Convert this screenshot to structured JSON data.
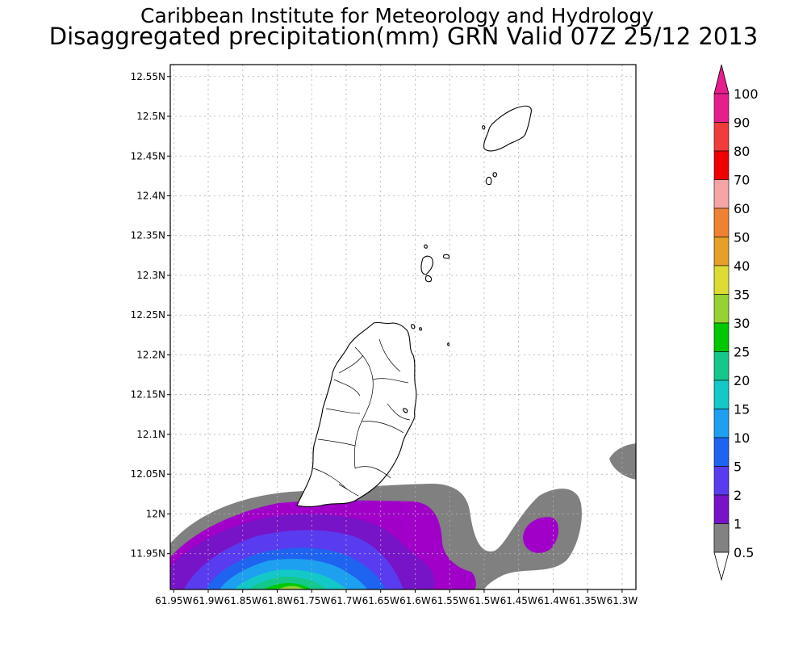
{
  "header": {
    "line1": "Caribbean Institute for Meteorology and Hydrology",
    "line2": "Disaggregated precipitation(mm) GRN Valid 07Z 25/12 2013"
  },
  "map": {
    "lat_ticks": [
      "12.55N",
      "12.5N",
      "12.45N",
      "12.4N",
      "12.35N",
      "12.3N",
      "12.25N",
      "12.2N",
      "12.15N",
      "12.1N",
      "12.05N",
      "12N",
      "11.95N"
    ],
    "lon_ticks": [
      "61.95W",
      "61.9W",
      "61.85W",
      "61.8W",
      "61.75W",
      "61.7W",
      "61.65W",
      "61.6W",
      "61.55W",
      "61.5W",
      "61.45W",
      "61.4W",
      "61.35W",
      "61.3W"
    ],
    "lat_values": [
      12.55,
      12.5,
      12.45,
      12.4,
      12.35,
      12.3,
      12.25,
      12.2,
      12.15,
      12.1,
      12.05,
      12.0,
      11.95
    ],
    "lon_values": [
      -61.95,
      -61.9,
      -61.85,
      -61.8,
      -61.75,
      -61.7,
      -61.65,
      -61.6,
      -61.55,
      -61.5,
      -61.45,
      -61.4,
      -61.35,
      -61.3
    ],
    "lat_range": [
      11.905,
      12.565
    ],
    "lon_range": [
      -61.955,
      -61.28
    ],
    "grid": true,
    "islands": [
      "Grenada",
      "Carriacou",
      "Grenadine islets"
    ]
  },
  "colorbar": {
    "labels": [
      "100",
      "90",
      "80",
      "70",
      "60",
      "50",
      "40",
      "35",
      "30",
      "25",
      "20",
      "15",
      "10",
      "5",
      "2",
      "1",
      "0.5"
    ],
    "colors": [
      "#e61e8c",
      "#f03c3c",
      "#f00000",
      "#f5a5a5",
      "#ee8232",
      "#e6a028",
      "#dcdc32",
      "#96d232",
      "#00c800",
      "#14c88c",
      "#14c8c8",
      "#1ea0f0",
      "#1e64f0",
      "#5a3cf0",
      "#7814c8",
      "#a000c8",
      "#828282"
    ],
    "top_arrow_color": "#e61e8c",
    "bottom_arrow_color": "#ffffff"
  }
}
